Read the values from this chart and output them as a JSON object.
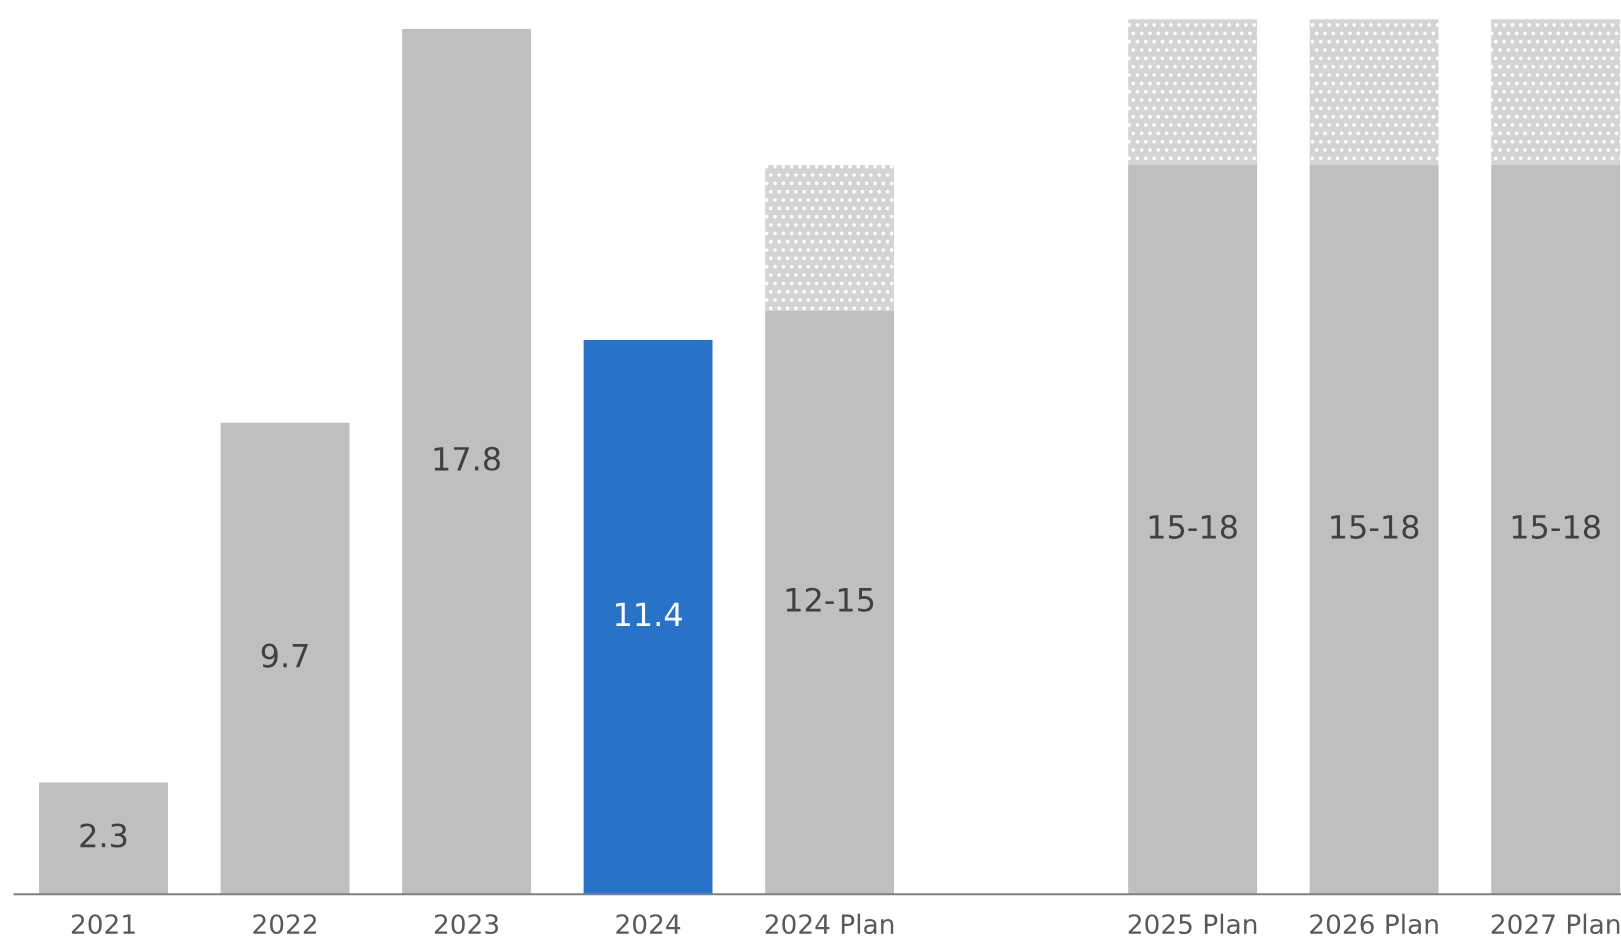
{
  "chart_data": {
    "type": "bar",
    "stacked": true,
    "categories": [
      "2021",
      "2022",
      "2023",
      "2024",
      "2024 Plan",
      null,
      "2025 Plan",
      "2026 Plan",
      "2027 Plan"
    ],
    "series": [
      {
        "colors": [
          "#bfbfbf",
          "#bfbfbf",
          "#bfbfbf",
          "#2872c8",
          "#bfbfbf",
          null,
          "#bfbfbf",
          "#bfbfbf",
          "#bfbfbf"
        ],
        "values": [
          2.3,
          9.7,
          17.8,
          11.4,
          12,
          null,
          15,
          15,
          15
        ],
        "value_labels": [
          "2.3",
          "9.7",
          "17.8",
          "11.4",
          "12-15",
          null,
          "15-18",
          "15-18",
          "15-18"
        ]
      },
      {
        "color": "#d4d4d4",
        "values": [
          null,
          null,
          null,
          null,
          3,
          null,
          3,
          3,
          3
        ]
      }
    ]
  }
}
